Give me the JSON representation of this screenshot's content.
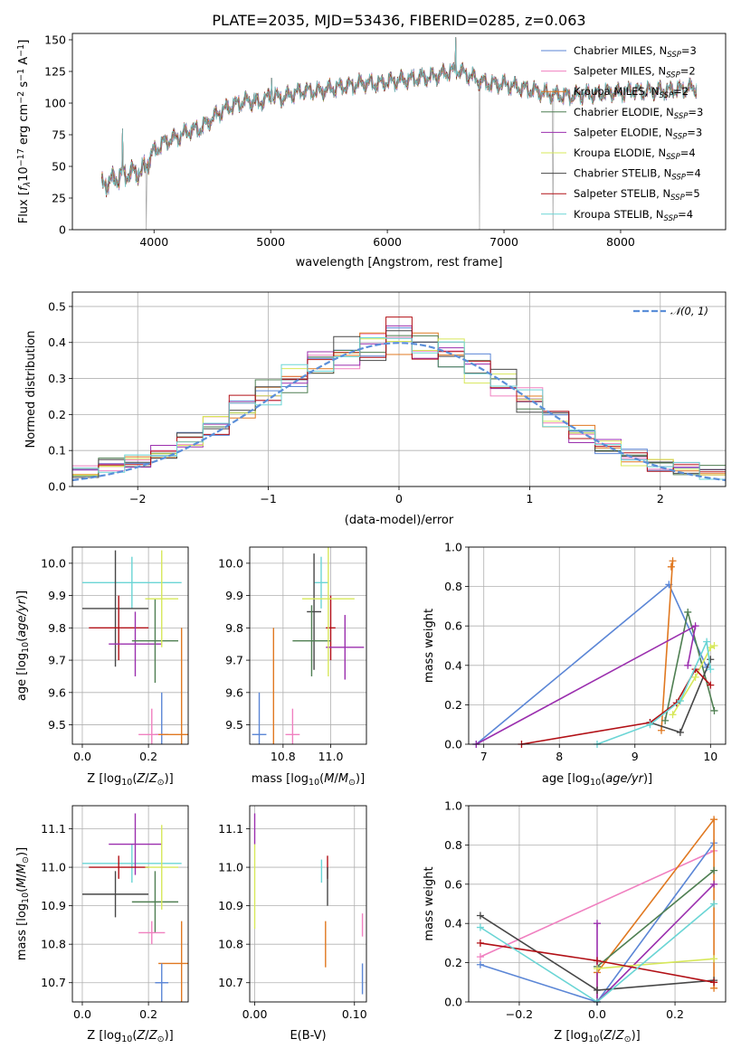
{
  "colors": {
    "chabrier_miles": "#5b86d6",
    "salpeter_miles": "#f080c0",
    "kroupa_miles": "#e07820",
    "chabrier_elodie": "#4f7f52",
    "salpeter_elodie": "#9b2fae",
    "kroupa_elodie": "#d7e85a",
    "chabrier_stelib": "#474747",
    "salpeter_stelib": "#b21016",
    "kroupa_stelib": "#6ad5d5",
    "reference": "#5b8fd9",
    "grid": "#b0b0b0",
    "spectrum_grey": "#9a9a9a"
  },
  "chart_data": [
    {
      "id": "spectrum",
      "type": "line",
      "title": "PLATE=2035, MJD=53436, FIBERID=0285, z=0.063",
      "xlabel": "wavelength [Angstrom, rest frame]",
      "ylabel": "Flux [fλ10⁻¹⁷ erg cm⁻² s⁻¹ A⁻¹]",
      "xlim": [
        3300,
        8900
      ],
      "ylim": [
        0,
        155
      ],
      "xticks": [
        4000,
        5000,
        6000,
        7000,
        8000
      ],
      "yticks": [
        0,
        25,
        50,
        75,
        100,
        125,
        150
      ],
      "grid": false,
      "legend_position": "upper right",
      "legend": [
        {
          "main": "Chabrier MILES, N",
          "sub": "SSP",
          "tail": "=3",
          "color_key": "chabrier_miles"
        },
        {
          "main": "Salpeter MILES, N",
          "sub": "SSP",
          "tail": "=2",
          "color_key": "salpeter_miles"
        },
        {
          "main": "Kroupa MILES, N",
          "sub": "SSP",
          "tail": "=2",
          "color_key": "kroupa_miles"
        },
        {
          "main": "Chabrier ELODIE, N",
          "sub": "SSP",
          "tail": "=3",
          "color_key": "chabrier_elodie"
        },
        {
          "main": "Salpeter ELODIE, N",
          "sub": "SSP",
          "tail": "=3",
          "color_key": "salpeter_elodie"
        },
        {
          "main": "Kroupa ELODIE, N",
          "sub": "SSP",
          "tail": "=4",
          "color_key": "kroupa_elodie"
        },
        {
          "main": "Chabrier STELIB, N",
          "sub": "SSP",
          "tail": "=4",
          "color_key": "chabrier_stelib"
        },
        {
          "main": "Salpeter STELIB, N",
          "sub": "SSP",
          "tail": "=5",
          "color_key": "salpeter_stelib"
        },
        {
          "main": "Kroupa STELIB, N",
          "sub": "SSP",
          "tail": "=4",
          "color_key": "kroupa_stelib"
        }
      ],
      "continuum": {
        "x": [
          3550,
          3700,
          3800,
          3900,
          4000,
          4100,
          4200,
          4300,
          4400,
          4500,
          4600,
          4700,
          4800,
          4900,
          5000,
          5100,
          5200,
          5300,
          5400,
          5500,
          5600,
          5700,
          5800,
          5900,
          6000,
          6100,
          6200,
          6300,
          6400,
          6500,
          6600,
          6700,
          6800,
          6900,
          7000,
          7100,
          7200,
          7300,
          7400,
          7500,
          7600,
          7700,
          7800,
          7900,
          8000,
          8100,
          8200,
          8300,
          8400,
          8500,
          8650
        ],
        "y": [
          35,
          42,
          45,
          46,
          62,
          70,
          73,
          78,
          80,
          88,
          95,
          99,
          102,
          100,
          106,
          104,
          108,
          110,
          109,
          111,
          113,
          114,
          116,
          115,
          117,
          118,
          119,
          120,
          121,
          124,
          126,
          122,
          117,
          115,
          115,
          113,
          111,
          109,
          107,
          106,
          106,
          107,
          107,
          109,
          108,
          110,
          109,
          110,
          110,
          111,
          112
        ]
      },
      "spikes": [
        {
          "x": 3730,
          "y": 80
        },
        {
          "x": 3935,
          "y": 0
        },
        {
          "x": 4860,
          "y": 108
        },
        {
          "x": 5007,
          "y": 120
        },
        {
          "x": 6300,
          "y": 128
        },
        {
          "x": 6565,
          "y": 150
        },
        {
          "x": 6585,
          "y": 152
        },
        {
          "x": 6790,
          "y": 0
        },
        {
          "x": 7420,
          "y": 0
        }
      ]
    },
    {
      "id": "residual-histogram",
      "type": "bar",
      "xlabel": "(data-model)/error",
      "ylabel": "Normed distribution",
      "xlim": [
        -2.5,
        2.5
      ],
      "ylim": [
        0,
        0.54
      ],
      "xticks": [
        -2,
        -1,
        0,
        1,
        2
      ],
      "yticks": [
        0.0,
        0.1,
        0.2,
        0.3,
        0.4,
        0.5
      ],
      "xtick_labels": [
        "−2",
        "−1",
        "0",
        "1",
        "2"
      ],
      "grid": true,
      "legend": "𝒩(0, 1)",
      "legend_position": "upper right",
      "reference_curve": "normal(0, 1)",
      "histogram_envelope": {
        "bin_edges": [
          -2.5,
          -2.3,
          -2.1,
          -1.9,
          -1.7,
          -1.5,
          -1.3,
          -1.1,
          -0.9,
          -0.7,
          -0.5,
          -0.3,
          -0.1,
          0.1,
          0.3,
          0.5,
          0.7,
          0.9,
          1.1,
          1.3,
          1.5,
          1.7,
          1.9,
          2.1,
          2.3,
          2.5
        ],
        "values": [
          0.04,
          0.06,
          0.07,
          0.09,
          0.13,
          0.17,
          0.22,
          0.26,
          0.3,
          0.34,
          0.37,
          0.39,
          0.42,
          0.39,
          0.37,
          0.33,
          0.29,
          0.24,
          0.19,
          0.15,
          0.11,
          0.08,
          0.06,
          0.05,
          0.04
        ]
      },
      "series": [
        {
          "name": "Chabrier MILES",
          "color_key": "chabrier_miles"
        },
        {
          "name": "Salpeter MILES",
          "color_key": "salpeter_miles"
        },
        {
          "name": "Kroupa MILES",
          "color_key": "kroupa_miles"
        },
        {
          "name": "Chabrier ELODIE",
          "color_key": "chabrier_elodie"
        },
        {
          "name": "Salpeter ELODIE",
          "color_key": "salpeter_elodie"
        },
        {
          "name": "Kroupa ELODIE",
          "color_key": "kroupa_elodie"
        },
        {
          "name": "Chabrier STELIB",
          "color_key": "chabrier_stelib"
        },
        {
          "name": "Salpeter STELIB",
          "color_key": "salpeter_stelib"
        },
        {
          "name": "Kroupa STELIB",
          "color_key": "kroupa_stelib"
        }
      ]
    },
    {
      "id": "age-vs-metallicity",
      "type": "scatter",
      "xlabel": "Z [log₁₀(Z/Z⊙)]",
      "ylabel": "age  [log₁₀(age/yr)]",
      "xlim": [
        -0.03,
        0.32
      ],
      "ylim": [
        9.44,
        10.05
      ],
      "xticks": [
        0.0,
        0.2
      ],
      "yticks": [
        9.5,
        9.6,
        9.7,
        9.8,
        9.9,
        10.0
      ],
      "grid": true,
      "points": [
        {
          "key": "kroupa_stelib",
          "x": 0.15,
          "xerr": 0.15,
          "y": 9.94,
          "yerr": 0.08
        },
        {
          "key": "chabrier_stelib",
          "x": 0.1,
          "xerr": 0.1,
          "y": 9.86,
          "yerr": 0.18
        },
        {
          "key": "salpeter_stelib",
          "x": 0.11,
          "xerr": 0.09,
          "y": 9.8,
          "yerr": 0.1
        },
        {
          "key": "salpeter_elodie",
          "x": 0.16,
          "xerr": 0.08,
          "y": 9.75,
          "yerr": 0.1
        },
        {
          "key": "chabrier_elodie",
          "x": 0.22,
          "xerr": 0.07,
          "y": 9.76,
          "yerr": 0.13
        },
        {
          "key": "kroupa_elodie",
          "x": 0.24,
          "xerr": 0.05,
          "y": 9.89,
          "yerr": 0.15
        },
        {
          "key": "chabrier_miles",
          "x": 0.24,
          "xerr": 0.02,
          "y": 9.47,
          "yerr": 0.13
        },
        {
          "key": "salpeter_miles",
          "x": 0.21,
          "xerr": 0.04,
          "y": 9.47,
          "yerr": 0.08
        },
        {
          "key": "kroupa_miles",
          "x": 0.3,
          "xerr": 0.07,
          "y": 9.47,
          "yerr": 0.33
        }
      ]
    },
    {
      "id": "age-vs-mass",
      "type": "scatter",
      "xlabel": "mass [log₁₀(M/M⊙)]",
      "ylabel": "",
      "xlim": [
        10.66,
        11.15
      ],
      "ylim": [
        9.44,
        10.05
      ],
      "xticks": [
        10.8,
        11.0
      ],
      "yticks": [
        9.5,
        9.6,
        9.7,
        9.8,
        9.9,
        10.0
      ],
      "grid": true,
      "points": [
        {
          "key": "kroupa_stelib",
          "x": 10.96,
          "xerr": 0.03,
          "y": 9.94,
          "yerr": 0.08
        },
        {
          "key": "chabrier_stelib",
          "x": 10.93,
          "xerr": 0.03,
          "y": 9.85,
          "yerr": 0.18
        },
        {
          "key": "salpeter_stelib",
          "x": 11.0,
          "xerr": 0.02,
          "y": 9.8,
          "yerr": 0.1
        },
        {
          "key": "salpeter_elodie",
          "x": 11.06,
          "xerr": 0.08,
          "y": 9.74,
          "yerr": 0.1
        },
        {
          "key": "chabrier_elodie",
          "x": 10.92,
          "xerr": 0.08,
          "y": 9.76,
          "yerr": 0.11
        },
        {
          "key": "kroupa_elodie",
          "x": 10.99,
          "xerr": 0.11,
          "y": 9.89,
          "yerr": 0.24
        },
        {
          "key": "chabrier_miles",
          "x": 10.7,
          "xerr": 0.03,
          "y": 9.47,
          "yerr": 0.13
        },
        {
          "key": "salpeter_miles",
          "x": 10.84,
          "xerr": 0.03,
          "y": 9.47,
          "yerr": 0.08
        },
        {
          "key": "kroupa_miles",
          "x": 10.76,
          "xerr": 0.0,
          "y": 9.47,
          "yerr": 0.33
        }
      ]
    },
    {
      "id": "mass-weight-vs-age",
      "type": "line",
      "xlabel": "age  [log₁₀(age/yr)]",
      "ylabel": "mass weight",
      "xlim": [
        6.8,
        10.2
      ],
      "ylim": [
        0,
        1
      ],
      "xticks": [
        7,
        8,
        9,
        10
      ],
      "yticks": [
        0.0,
        0.2,
        0.4,
        0.6,
        0.8,
        1.0
      ],
      "grid": true,
      "series": [
        {
          "key": "chabrier_miles",
          "x": [
            6.9,
            9.45,
            9.95
          ],
          "y": [
            0.0,
            0.81,
            0.39
          ]
        },
        {
          "key": "kroupa_miles",
          "x": [
            9.35,
            9.5,
            9.48
          ],
          "y": [
            0.07,
            0.93,
            0.9
          ]
        },
        {
          "key": "chabrier_elodie",
          "x": [
            9.4,
            9.7,
            10.05
          ],
          "y": [
            0.12,
            0.67,
            0.17
          ]
        },
        {
          "key": "salpeter_elodie",
          "x": [
            6.9,
            9.8,
            9.7
          ],
          "y": [
            0.0,
            0.6,
            0.4
          ]
        },
        {
          "key": "kroupa_elodie",
          "x": [
            9.5,
            9.8,
            10.0,
            10.05
          ],
          "y": [
            0.15,
            0.34,
            0.49,
            0.5
          ]
        },
        {
          "key": "chabrier_stelib",
          "x": [
            9.2,
            9.6,
            10.0
          ],
          "y": [
            0.11,
            0.06,
            0.43
          ]
        },
        {
          "key": "salpeter_stelib",
          "x": [
            7.5,
            9.2,
            9.55,
            9.8,
            10.0
          ],
          "y": [
            0.0,
            0.11,
            0.21,
            0.38,
            0.3
          ]
        },
        {
          "key": "kroupa_stelib",
          "x": [
            8.5,
            9.2,
            9.6,
            9.95,
            10.0
          ],
          "y": [
            0.0,
            0.1,
            0.22,
            0.52,
            0.38
          ]
        }
      ]
    },
    {
      "id": "mass-vs-metallicity",
      "type": "scatter",
      "xlabel": "Z [log₁₀(Z/Z⊙)]",
      "ylabel": "mass [log₁₀(M/M⊙)]",
      "xlim": [
        -0.03,
        0.32
      ],
      "ylim": [
        10.65,
        11.16
      ],
      "xticks": [
        0.0,
        0.2
      ],
      "yticks": [
        10.7,
        10.8,
        10.9,
        11.0,
        11.1
      ],
      "grid": true,
      "points": [
        {
          "key": "kroupa_stelib",
          "x": 0.15,
          "xerr": 0.15,
          "y": 11.01,
          "yerr": 0.05
        },
        {
          "key": "salpeter_elodie",
          "x": 0.16,
          "xerr": 0.08,
          "y": 11.06,
          "yerr": 0.08
        },
        {
          "key": "salpeter_stelib",
          "x": 0.11,
          "xerr": 0.09,
          "y": 11.0,
          "yerr": 0.03
        },
        {
          "key": "chabrier_stelib",
          "x": 0.1,
          "xerr": 0.1,
          "y": 10.93,
          "yerr": 0.06
        },
        {
          "key": "chabrier_elodie",
          "x": 0.22,
          "xerr": 0.07,
          "y": 10.91,
          "yerr": 0.08
        },
        {
          "key": "kroupa_elodie",
          "x": 0.24,
          "xerr": 0.05,
          "y": 11.0,
          "yerr": 0.11
        },
        {
          "key": "salpeter_miles",
          "x": 0.21,
          "xerr": 0.04,
          "y": 10.83,
          "yerr": 0.03
        },
        {
          "key": "kroupa_miles",
          "x": 0.3,
          "xerr": 0.07,
          "y": 10.75,
          "yerr": 0.11
        },
        {
          "key": "chabrier_miles",
          "x": 0.24,
          "xerr": 0.02,
          "y": 10.7,
          "yerr": 0.05
        }
      ]
    },
    {
      "id": "mass-vs-extinction",
      "type": "scatter",
      "xlabel": "E(B-V)",
      "ylabel": "",
      "xlim": [
        -0.005,
        0.112
      ],
      "ylim": [
        10.65,
        11.16
      ],
      "xticks": [
        0.0,
        0.1
      ],
      "xtick_labels": [
        "0.00",
        "0.10"
      ],
      "yticks": [
        10.7,
        10.8,
        10.9,
        11.0,
        11.1
      ],
      "grid": true,
      "points": [
        {
          "key": "salpeter_elodie",
          "x": 0.0,
          "xerr": 0.0,
          "y": 11.1,
          "yerr": 0.04
        },
        {
          "key": "kroupa_elodie",
          "x": 0.0,
          "xerr": 0.0,
          "y": 10.95,
          "yerr": 0.11
        },
        {
          "key": "kroupa_stelib",
          "x": 0.067,
          "xerr": 0.0,
          "y": 10.99,
          "yerr": 0.03
        },
        {
          "key": "salpeter_stelib",
          "x": 0.073,
          "xerr": 0.0,
          "y": 11.0,
          "yerr": 0.03
        },
        {
          "key": "chabrier_stelib",
          "x": 0.073,
          "xerr": 0.0,
          "y": 10.95,
          "yerr": 0.05
        },
        {
          "key": "kroupa_miles",
          "x": 0.071,
          "xerr": 0.0,
          "y": 10.8,
          "yerr": 0.06
        },
        {
          "key": "salpeter_miles",
          "x": 0.108,
          "xerr": 0.0,
          "y": 10.85,
          "yerr": 0.03
        },
        {
          "key": "chabrier_miles",
          "x": 0.108,
          "xerr": 0.0,
          "y": 10.71,
          "yerr": 0.04
        }
      ]
    },
    {
      "id": "mass-weight-vs-metallicity",
      "type": "line",
      "xlabel": "Z [log₁₀(Z/Z⊙)]",
      "ylabel": "mass weight",
      "xlim": [
        -0.33,
        0.33
      ],
      "ylim": [
        0,
        1
      ],
      "xticks": [
        -0.2,
        0.0,
        0.2
      ],
      "xtick_labels": [
        "−0.2",
        "0.0",
        "0.2"
      ],
      "yticks": [
        0.0,
        0.2,
        0.4,
        0.6,
        0.8,
        1.0
      ],
      "grid": true,
      "series": [
        {
          "key": "salpeter_miles",
          "x": [
            -0.3,
            0.3
          ],
          "y": [
            0.23,
            0.77
          ]
        },
        {
          "key": "chabrier_miles",
          "x": [
            -0.3,
            0.0,
            0.3
          ],
          "y": [
            0.19,
            0.0,
            0.81
          ]
        },
        {
          "key": "kroupa_miles",
          "x": [
            0.0,
            0.0,
            0.3,
            0.3
          ],
          "y": [
            0.0,
            0.15,
            0.93,
            0.07
          ]
        },
        {
          "key": "chabrier_elodie",
          "x": [
            0.0,
            0.3
          ],
          "y": [
            0.18,
            0.67
          ]
        },
        {
          "key": "salpeter_elodie",
          "x": [
            0.0,
            0.0,
            0.3
          ],
          "y": [
            0.4,
            0.0,
            0.6
          ]
        },
        {
          "key": "kroupa_elodie",
          "x": [
            0.0,
            0.3
          ],
          "y": [
            0.17,
            0.22
          ]
        },
        {
          "key": "chabrier_stelib",
          "x": [
            -0.3,
            0.0,
            0.3
          ],
          "y": [
            0.44,
            0.06,
            0.11
          ]
        },
        {
          "key": "salpeter_stelib",
          "x": [
            -0.3,
            0.0,
            0.3
          ],
          "y": [
            0.3,
            0.21,
            0.1
          ]
        },
        {
          "key": "kroupa_stelib",
          "x": [
            -0.3,
            0.0,
            0.3
          ],
          "y": [
            0.38,
            0.0,
            0.5
          ]
        }
      ]
    }
  ]
}
